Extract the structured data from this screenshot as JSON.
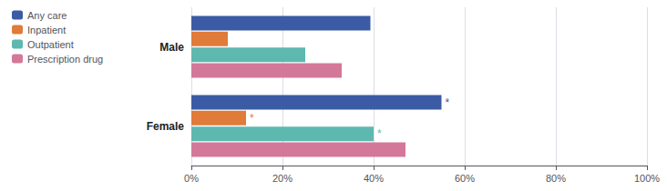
{
  "chart_data": {
    "type": "bar",
    "orientation": "horizontal",
    "categories": [
      "Male",
      "Female"
    ],
    "series": [
      {
        "name": "Any care",
        "color": "#3B5BA5",
        "values": [
          39.3,
          54.9
        ]
      },
      {
        "name": "Inpatient",
        "color": "#E07B39",
        "values": [
          8.0,
          12.0
        ]
      },
      {
        "name": "Outpatient",
        "color": "#5DB8B0",
        "values": [
          25.0,
          40.0
        ]
      },
      {
        "name": "Prescription drug",
        "color": "#D4789A",
        "values": [
          33.0,
          47.0
        ]
      }
    ],
    "annotations": [
      {
        "text": "*",
        "series": "Any care",
        "category": "Female"
      },
      {
        "text": "*",
        "series": "Inpatient",
        "category": "Female"
      },
      {
        "text": "*",
        "series": "Outpatient",
        "category": "Female"
      }
    ],
    "xlim": [
      0,
      100
    ],
    "xticks": [
      {
        "value": 0,
        "label": "0%"
      },
      {
        "value": 20,
        "label": "20%"
      },
      {
        "value": 40,
        "label": "40%"
      },
      {
        "value": 60,
        "label": "60%"
      },
      {
        "value": 80,
        "label": "80%"
      },
      {
        "value": 100,
        "label": "100%"
      }
    ],
    "grid": true,
    "legend": "upper left"
  }
}
